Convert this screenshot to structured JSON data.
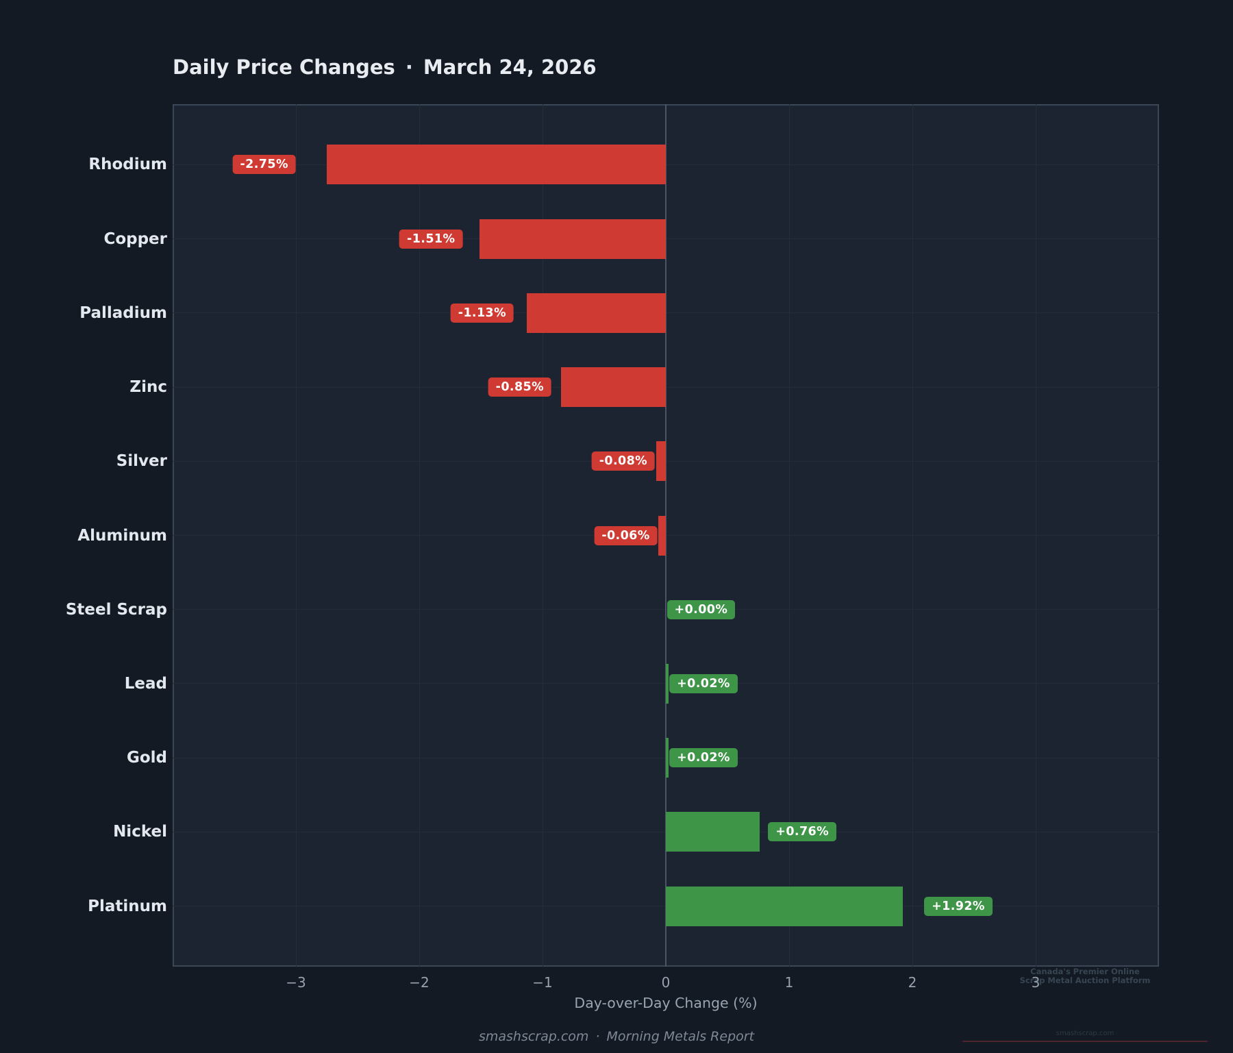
{
  "header": {
    "title": "Daily Price Changes",
    "separator": "·",
    "date": "March 24, 2026"
  },
  "chart_data": {
    "type": "bar",
    "orientation": "horizontal",
    "title": "Daily Price Changes · March 24, 2026",
    "categories": [
      "Rhodium",
      "Copper",
      "Palladium",
      "Zinc",
      "Silver",
      "Aluminum",
      "Steel Scrap",
      "Lead",
      "Gold",
      "Nickel",
      "Platinum"
    ],
    "values": [
      -2.75,
      -1.51,
      -1.13,
      -0.85,
      -0.08,
      -0.06,
      0.0,
      0.02,
      0.02,
      0.76,
      1.92
    ],
    "value_labels": [
      "-2.75%",
      "-1.51%",
      "-1.13%",
      "-0.85%",
      "-0.08%",
      "-0.06%",
      "+0.00%",
      "+0.02%",
      "+0.02%",
      "+0.76%",
      "+1.92%"
    ],
    "xlabel": "Day-over-Day Change (%)",
    "xlim": [
      -4,
      4
    ],
    "xticks": [
      -3,
      -2,
      -1,
      0,
      1,
      2,
      3
    ],
    "xtick_labels": [
      "−3",
      "−2",
      "−1",
      "0",
      "1",
      "2",
      "3"
    ],
    "grid": true,
    "legend": null,
    "colors": {
      "negative": "#cf3a33",
      "positive": "#3e9447",
      "background": "#131a23",
      "plot_background": "#1b2430",
      "zero_line": "#4a5666"
    }
  },
  "footer": {
    "site": "smashscrap.com",
    "separator": "·",
    "report": "Morning Metals Report"
  },
  "watermark": {
    "line1": "Canada's Premier Online",
    "line2": "Scrap Metal Auction Platform",
    "site": "smashscrap.com"
  }
}
